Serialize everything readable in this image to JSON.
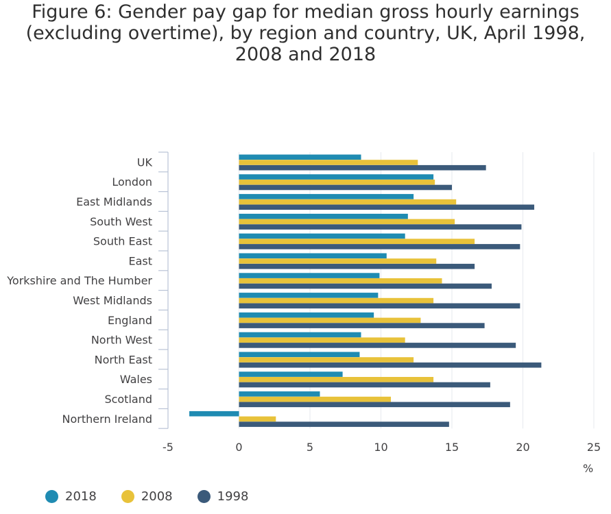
{
  "title_lines": [
    "Figure 6: Gender pay gap for median gross hourly earnings",
    "(excluding overtime), by region and country, UK, April 1998,",
    "2008 and 2018"
  ],
  "chart_data": {
    "type": "bar",
    "orientation": "horizontal",
    "title": "Figure 6: Gender pay gap for median gross hourly earnings (excluding overtime), by region and country, UK, April 1998, 2008 and 2018",
    "xlabel": "%",
    "ylabel": "",
    "xlim": [
      -5,
      25
    ],
    "xticks": [
      -5,
      0,
      5,
      10,
      15,
      20,
      25
    ],
    "xtick_labels": [
      "-5",
      "0",
      "5",
      "10",
      "15",
      "20",
      "25"
    ],
    "grid": "vertical",
    "legend_position": "bottom-left",
    "categories": [
      "UK",
      "London",
      "East Midlands",
      "South West",
      "South East",
      "East",
      "Yorkshire and The Humber",
      "West Midlands",
      "England",
      "North West",
      "North East",
      "Wales",
      "Scotland",
      "Northern Ireland"
    ],
    "series": [
      {
        "name": "2018",
        "color": "#1f8bb2",
        "values": [
          8.6,
          13.7,
          12.3,
          11.9,
          11.7,
          10.4,
          9.9,
          9.8,
          9.5,
          8.6,
          8.5,
          7.3,
          5.7,
          -3.5
        ]
      },
      {
        "name": "2008",
        "color": "#e8c23a",
        "values": [
          12.6,
          13.8,
          15.3,
          15.2,
          16.6,
          13.9,
          14.3,
          13.7,
          12.8,
          11.7,
          12.3,
          13.7,
          10.7,
          2.6
        ]
      },
      {
        "name": "1998",
        "color": "#3b5a7a",
        "values": [
          17.4,
          15.0,
          20.8,
          19.9,
          19.8,
          16.6,
          17.8,
          19.8,
          17.3,
          19.5,
          21.3,
          17.7,
          19.1,
          14.8
        ]
      }
    ]
  }
}
